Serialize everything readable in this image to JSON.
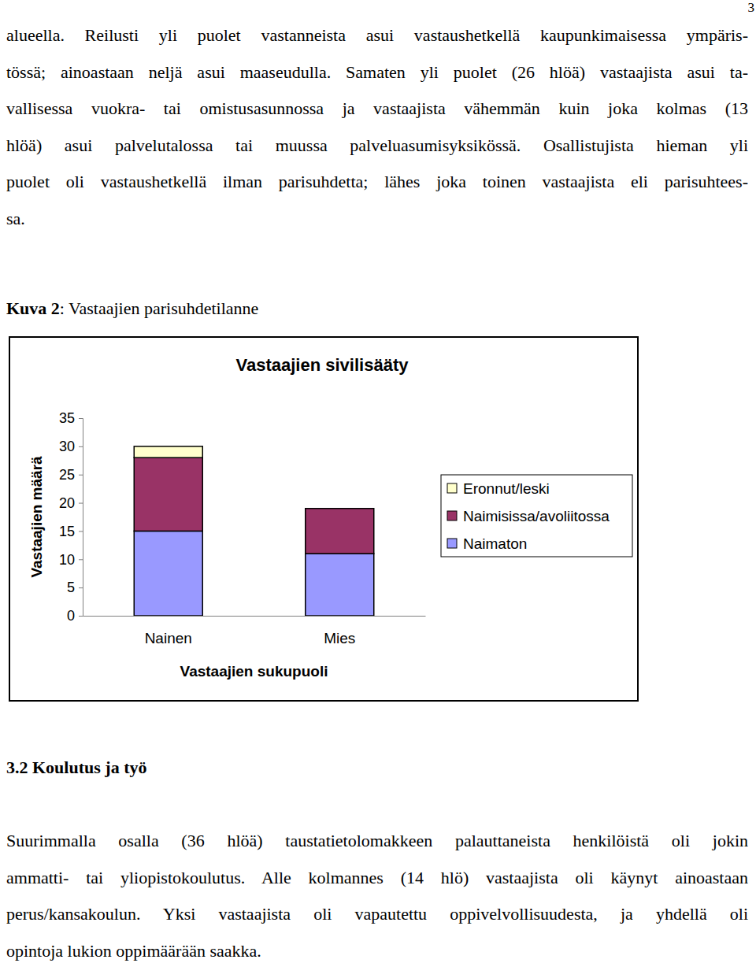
{
  "page_number": "3",
  "paragraphs": [
    {
      "lines": [
        "alueella. Reilusti yli puolet vastanneista asui vastaushetkellä kaupunkimaisessa ympäris-",
        "tössä; ainoastaan neljä asui maaseudulla. Samaten yli puolet (26 hlöä) vastaajista asui ta-",
        "vallisessa vuokra- tai omistusasunnossa ja vastaajista vähemmän kuin joka kolmas (13",
        "hlöä) asui palvelutalossa tai muussa palveluasumisyksikössä. Osallistujista hieman yli",
        "puolet oli vastaushetkellä ilman parisuhdetta; lähes joka toinen vastaajista eli parisuhtees-",
        "sa."
      ]
    },
    {
      "lines": [
        "Suurimmalla osalla (36 hlöä) taustatietolomakkeen palauttaneista henkilöistä oli jokin",
        "ammatti- tai yliopistokoulutus. Alle kolmannes (14 hlö) vastaajista oli käynyt ainoastaan",
        "perus/kansakoulun. Yksi vastaajista oli vapautettu oppivelvollisuudesta, ja yhdellä oli",
        "opintoja lukion oppimäärään saakka."
      ]
    }
  ],
  "caption": {
    "label": "Kuva 2",
    "text": ": Vastaajien parisuhdetilanne"
  },
  "heading": "3.2 Koulutus ja työ",
  "chart_data": {
    "type": "bar",
    "stacked": true,
    "title": "Vastaajien sivilisääty",
    "x_label": "Vastaajien sukupuoli",
    "y_label": "Vastaajien määrä",
    "categories": [
      "Nainen",
      "Mies"
    ],
    "series": [
      {
        "name": "Naimaton",
        "color": "#9999ff",
        "values": [
          15,
          11
        ]
      },
      {
        "name": "Naimisissa/avoliitossa",
        "color": "#993366",
        "values": [
          13,
          8
        ]
      },
      {
        "name": "Eronnut/leski",
        "color": "#ffffcc",
        "values": [
          2,
          0
        ]
      }
    ],
    "ylim": [
      0,
      35
    ],
    "yticks": [
      0,
      5,
      10,
      15,
      20,
      25,
      30,
      35
    ],
    "legend": "right"
  }
}
